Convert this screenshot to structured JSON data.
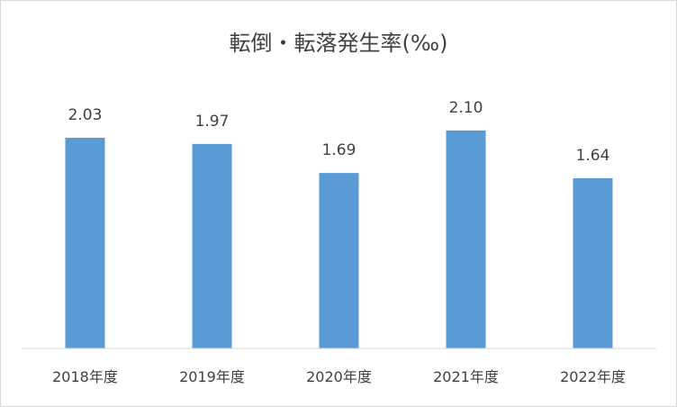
{
  "chart_data": {
    "type": "bar",
    "title": "転倒・転落発生率(‰)",
    "categories": [
      "2018年度",
      "2019年度",
      "2020年度",
      "2021年度",
      "2022年度"
    ],
    "values": [
      2.03,
      1.97,
      1.69,
      2.1,
      1.64
    ],
    "data_labels": [
      "2.03",
      "1.97",
      "1.69",
      "2.10",
      "1.64"
    ],
    "ylim": [
      0,
      2.5
    ],
    "bar_color": "#5b9bd5",
    "axis_color": "#d9d9d9",
    "grid": false,
    "legend": "none"
  }
}
